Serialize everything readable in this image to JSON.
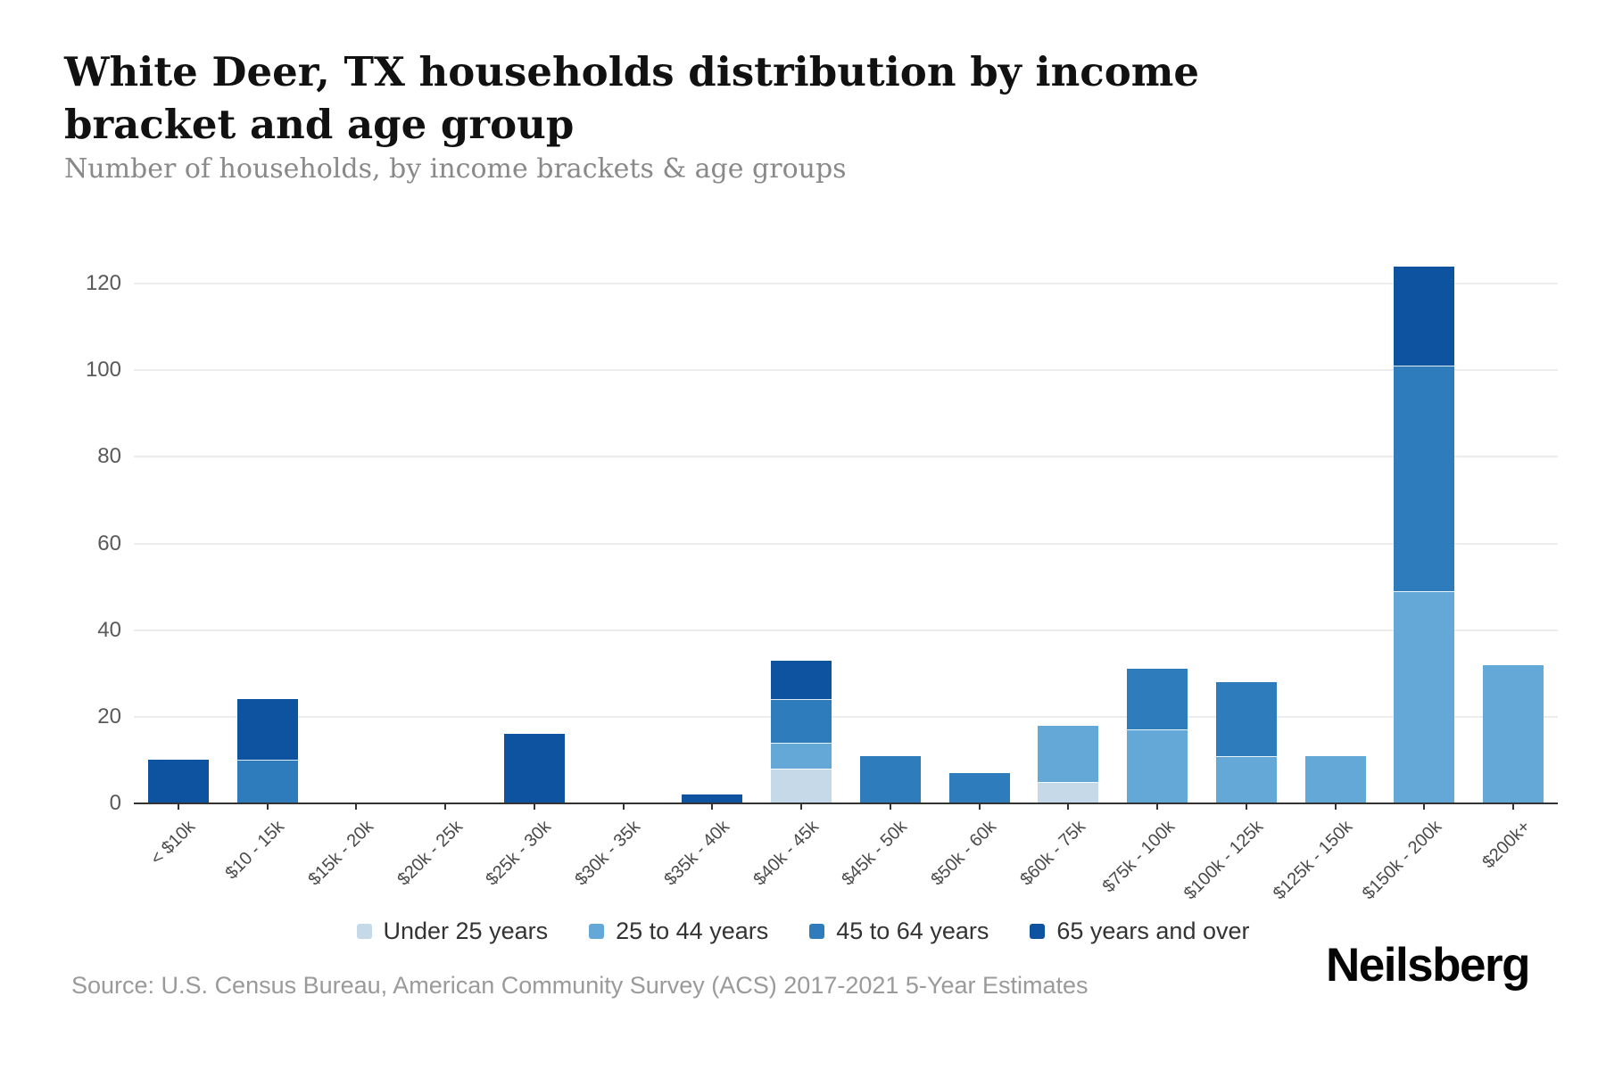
{
  "page": {
    "title": "White Deer, TX households distribution by income bracket and age group",
    "subtitle": "Number of households, by income brackets & age groups",
    "source": "Source: U.S. Census Bureau, American Community Survey (ACS) 2017-2021 5-Year Estimates",
    "brand": "Neilsberg"
  },
  "chart_data": {
    "type": "bar",
    "stacked": true,
    "title": "White Deer, TX households distribution by income bracket and age group",
    "subtitle": "Number of households, by income brackets & age groups",
    "xlabel": "",
    "ylabel": "Number of households",
    "categories": [
      "< $10k",
      "$10 - 15k",
      "$15k - 20k",
      "$20k - 25k",
      "$25k - 30k",
      "$30k - 35k",
      "$35k - 40k",
      "$40k - 45k",
      "$45k - 50k",
      "$50k - 60k",
      "$60k - 75k",
      "$75k - 100k",
      "$100k - 125k",
      "$125k - 150k",
      "$150k - 200k",
      "$200k+"
    ],
    "series": [
      {
        "name": "Under 25 years",
        "color": "#c5d9e8",
        "values": [
          0,
          0,
          0,
          0,
          0,
          0,
          0,
          8,
          0,
          0,
          5,
          0,
          0,
          0,
          0,
          0
        ]
      },
      {
        "name": "25 to 44 years",
        "color": "#63a8d6",
        "values": [
          0,
          0,
          0,
          0,
          0,
          0,
          0,
          6,
          0,
          0,
          13,
          17,
          11,
          11,
          49,
          32
        ]
      },
      {
        "name": "45 to 64 years",
        "color": "#2e7cbc",
        "values": [
          0,
          10,
          0,
          0,
          0,
          0,
          0,
          10,
          11,
          7,
          0,
          14,
          17,
          0,
          52,
          0
        ]
      },
      {
        "name": "65 years and over",
        "color": "#0d53a0",
        "values": [
          10,
          14,
          0,
          0,
          16,
          0,
          2,
          9,
          0,
          0,
          0,
          0,
          0,
          0,
          23,
          0
        ]
      }
    ],
    "totals": [
      10,
      24,
      0,
      0,
      16,
      0,
      2,
      33,
      11,
      7,
      18,
      31,
      28,
      11,
      124,
      32
    ],
    "ylim": [
      0,
      130
    ],
    "yticks": [
      0,
      20,
      40,
      60,
      80,
      100,
      120
    ],
    "grid": true,
    "legend_position": "bottom"
  }
}
